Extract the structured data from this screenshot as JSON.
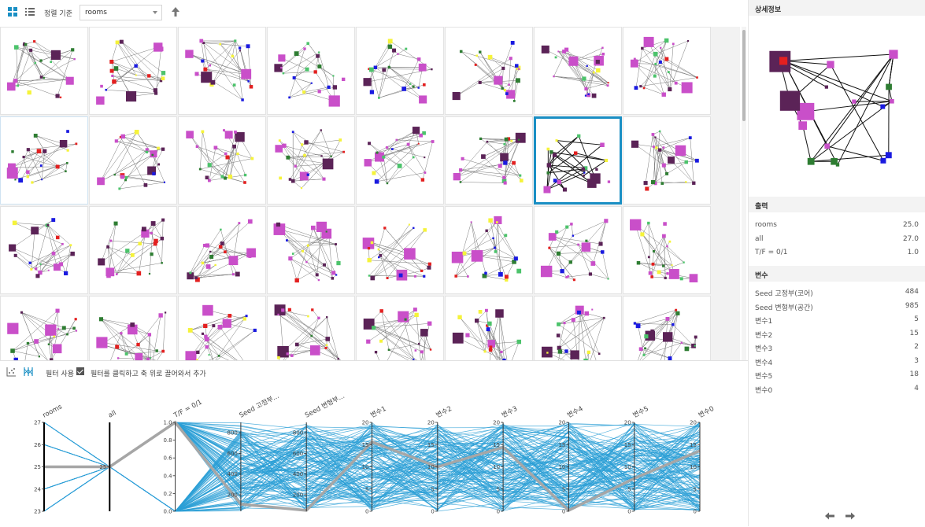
{
  "toolbar": {
    "sort_label": "정렬 기준",
    "sort_value": "rooms",
    "icons": [
      "grid-view-icon",
      "list-view-icon",
      "sort-ascending-icon"
    ]
  },
  "lower": {
    "filter_label": "필터 사용",
    "filter_checked": true,
    "filter_hint": "필터를 클릭하고 축 위로 끌어와서 추가",
    "icons": [
      "scatter-plot-icon",
      "parallel-coordinates-icon"
    ]
  },
  "parallel_coords": {
    "axes": [
      {
        "label": "rooms",
        "ticks": [
          "27",
          "26",
          "25",
          "24",
          "23"
        ]
      },
      {
        "label": "all",
        "ticks": [
          "25"
        ]
      },
      {
        "label": "T/F = 0/1",
        "ticks": [
          "1.0",
          "0.8",
          "0.6",
          "0.4",
          "0.2",
          "0.0"
        ]
      },
      {
        "label": "Seed 고정부...",
        "ticks": [
          "800",
          "600",
          "400",
          "200"
        ]
      },
      {
        "label": "Seed 변형부...",
        "ticks": [
          "800",
          "600",
          "400",
          "200"
        ]
      },
      {
        "label": "변수1",
        "ticks": [
          "20",
          "15",
          "10",
          "5",
          "0"
        ]
      },
      {
        "label": "변수2",
        "ticks": [
          "20",
          "15",
          "10",
          "5",
          "0"
        ]
      },
      {
        "label": "변수3",
        "ticks": [
          "20",
          "15",
          "10",
          "5",
          "0"
        ]
      },
      {
        "label": "변수4",
        "ticks": [
          "20",
          "15",
          "10",
          "5",
          "0"
        ]
      },
      {
        "label": "변수5",
        "ticks": [
          "20",
          "15",
          "10",
          "5",
          "0"
        ]
      },
      {
        "label": "변수0",
        "ticks": [
          "20",
          "15",
          "10",
          "5",
          "0"
        ]
      }
    ],
    "line_color": "#2a9fd6",
    "highlight_color": "#a6a6a6"
  },
  "detail": {
    "title": "상세정보",
    "output_title": "출력",
    "outputs": [
      {
        "key": "rooms",
        "value": "25.0"
      },
      {
        "key": "all",
        "value": "27.0"
      },
      {
        "key": "T/F = 0/1",
        "value": "1.0"
      }
    ],
    "vars_title": "변수",
    "vars": [
      {
        "key": "Seed 고정부(코어)",
        "value": "484"
      },
      {
        "key": "Seed 변형부(공간)",
        "value": "985"
      },
      {
        "key": "변수1",
        "value": "5"
      },
      {
        "key": "변수2",
        "value": "15"
      },
      {
        "key": "변수3",
        "value": "2"
      },
      {
        "key": "변수4",
        "value": "3"
      },
      {
        "key": "변수5",
        "value": "18"
      },
      {
        "key": "변수0",
        "value": "4"
      }
    ],
    "nav_icons": [
      "arrow-left-icon",
      "arrow-right-icon"
    ]
  },
  "grid": {
    "columns": 8,
    "rows": 4,
    "selected_index": 14,
    "hover_index": 8,
    "palette": {
      "magenta": "#c94fc9",
      "dark_purple": "#5b2357",
      "green": "#2e7d32",
      "light_green": "#4cc36b",
      "blue": "#1a1ae0",
      "yellow": "#f5f33a",
      "red": "#e32020"
    }
  }
}
